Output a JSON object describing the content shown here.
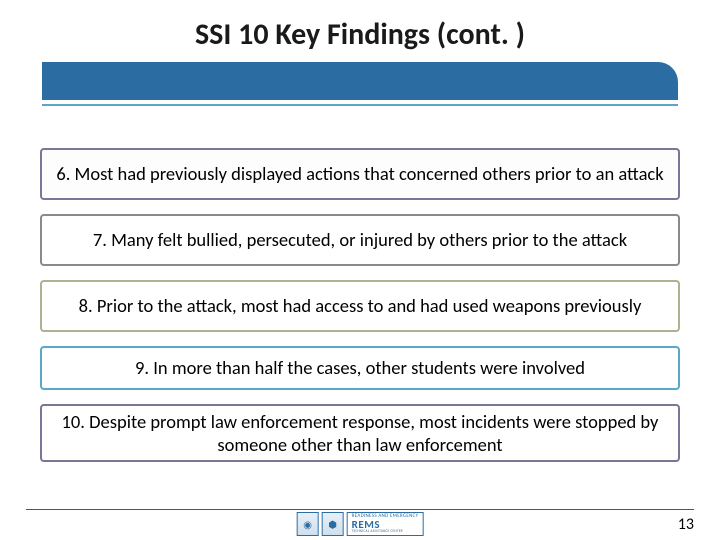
{
  "title": "SSI 10 Key Findings (cont. )",
  "findings": [
    "6. Most had previously displayed actions that concerned others prior to an attack",
    "7. Many felt bullied, persecuted, or injured by others prior to the attack",
    "8. Prior to the attack, most had access to and had used weapons previously",
    "9. In more than half the cases, other students were involved",
    "10. Despite prompt law enforcement response, most incidents were stopped by someone other than law enforcement"
  ],
  "pageNumber": "13",
  "logo": {
    "brand": "REMS",
    "top": "READINESS AND EMERGENCY",
    "sub": "TECHNICAL ASSISTANCE CENTER"
  },
  "colors": {
    "titleBar": "#2b6ca3",
    "underline": "#5aa7c7",
    "boxBorders": [
      "#7b7597",
      "#8a8a8a",
      "#b0b190",
      "#5aa7c7",
      "#7b7597"
    ]
  }
}
